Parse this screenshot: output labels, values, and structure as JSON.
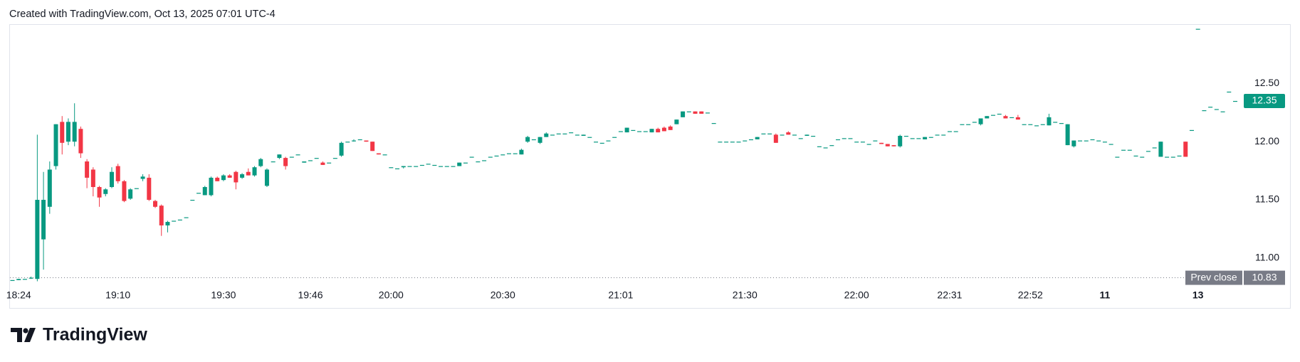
{
  "header": "Created with TradingView.com, Oct 13, 2025 07:01 UTC-4",
  "logo": "TradingView",
  "chart_data": {
    "type": "candlestick",
    "up_color": "#089981",
    "down_color": "#f23645",
    "ylim": [
      10.76,
      13.01
    ],
    "yticks": [
      {
        "value": 11,
        "label": "11.00"
      },
      {
        "value": 11.5,
        "label": "11.50"
      },
      {
        "value": 12,
        "label": "12.00"
      },
      {
        "value": 12.5,
        "label": "12.50"
      }
    ],
    "last_price": 12.35,
    "prev_close_label": "Prev close",
    "prev_close": 10.83,
    "categories": [
      null,
      "18:24",
      null,
      null,
      null,
      null,
      null,
      null,
      null,
      null,
      null,
      null,
      null,
      null,
      null,
      null,
      null,
      "19:10",
      null,
      null,
      null,
      null,
      null,
      null,
      null,
      null,
      null,
      null,
      null,
      null,
      null,
      null,
      null,
      null,
      "19:30",
      null,
      null,
      null,
      null,
      null,
      null,
      null,
      null,
      null,
      null,
      null,
      null,
      null,
      "19:46",
      null,
      null,
      null,
      null,
      null,
      null,
      null,
      null,
      null,
      null,
      null,
      null,
      "20:00",
      null,
      null,
      null,
      null,
      null,
      null,
      null,
      null,
      null,
      null,
      null,
      null,
      null,
      null,
      null,
      null,
      null,
      "20:30",
      null,
      null,
      null,
      null,
      null,
      null,
      null,
      null,
      null,
      null,
      null,
      null,
      null,
      null,
      null,
      null,
      null,
      null,
      "21:01",
      null,
      null,
      null,
      null,
      null,
      null,
      null,
      null,
      null,
      null,
      null,
      null,
      null,
      null,
      null,
      null,
      null,
      null,
      null,
      "21:30",
      null,
      null,
      null,
      null,
      null,
      null,
      null,
      null,
      null,
      null,
      null,
      null,
      null,
      null,
      null,
      null,
      null,
      "22:00",
      null,
      null,
      null,
      null,
      null,
      null,
      null,
      null,
      null,
      null,
      null,
      null,
      null,
      null,
      "22:31",
      null,
      null,
      null,
      null,
      null,
      null,
      null,
      null,
      null,
      null,
      null,
      null,
      "22:52",
      null,
      null,
      null,
      null,
      null,
      null,
      null,
      null,
      null,
      null,
      null,
      "11",
      null,
      null,
      null,
      null,
      null,
      null,
      null,
      null,
      null,
      null,
      null,
      null,
      null,
      null,
      "13",
      null,
      null,
      null,
      null,
      null,
      null
    ],
    "candles": [
      [
        10.81,
        10.81,
        10.81,
        10.81
      ],
      [
        10.81,
        10.82,
        10.81,
        10.82
      ],
      [
        10.82,
        10.82,
        10.82,
        10.82
      ],
      [
        10.83,
        10.84,
        10.82,
        10.83
      ],
      [
        10.82,
        12.06,
        10.8,
        11.5
      ],
      [
        11.16,
        11.74,
        10.9,
        11.5
      ],
      [
        11.44,
        11.83,
        11.38,
        11.76
      ],
      [
        11.79,
        12.15,
        11.76,
        12.15
      ],
      [
        12.17,
        12.22,
        11.89,
        11.99
      ],
      [
        12.0,
        12.2,
        11.97,
        12.17
      ],
      [
        12.0,
        12.33,
        11.96,
        12.17
      ],
      [
        12.11,
        12.13,
        11.86,
        11.9
      ],
      [
        11.83,
        11.85,
        11.6,
        11.69
      ],
      [
        11.76,
        11.78,
        11.53,
        11.61
      ],
      [
        11.61,
        11.62,
        11.44,
        11.52
      ],
      [
        11.55,
        11.6,
        11.53,
        11.59
      ],
      [
        11.61,
        11.78,
        11.6,
        11.74
      ],
      [
        11.79,
        11.81,
        11.64,
        11.66
      ],
      [
        11.66,
        11.67,
        11.48,
        11.49
      ],
      [
        11.51,
        11.6,
        11.5,
        11.59
      ],
      [
        11.6,
        11.6,
        11.6,
        11.6
      ],
      [
        11.68,
        11.72,
        11.66,
        11.7
      ],
      [
        11.69,
        11.72,
        11.49,
        11.5
      ],
      [
        11.49,
        11.5,
        11.43,
        11.44
      ],
      [
        11.45,
        11.46,
        11.19,
        11.28
      ],
      [
        11.28,
        11.32,
        11.22,
        11.31
      ],
      [
        11.32,
        11.32,
        11.32,
        11.32
      ],
      [
        11.33,
        11.33,
        11.33,
        11.33
      ],
      [
        11.35,
        11.35,
        11.35,
        11.35
      ],
      [
        11.5,
        11.5,
        11.5,
        11.5
      ],
      [
        11.56,
        11.56,
        11.56,
        11.56
      ],
      [
        11.54,
        11.62,
        11.54,
        11.61
      ],
      [
        11.54,
        11.7,
        11.53,
        11.69
      ],
      [
        11.69,
        11.7,
        11.66,
        11.66
      ],
      [
        11.67,
        11.72,
        11.66,
        11.71
      ],
      [
        11.71,
        11.72,
        11.69,
        11.69
      ],
      [
        11.74,
        11.75,
        11.59,
        11.65
      ],
      [
        11.69,
        11.73,
        11.68,
        11.72
      ],
      [
        11.74,
        11.77,
        11.71,
        11.71
      ],
      [
        11.71,
        11.79,
        11.7,
        11.78
      ],
      [
        11.79,
        11.86,
        11.78,
        11.85
      ],
      [
        11.62,
        11.77,
        11.61,
        11.76
      ],
      [
        11.83,
        11.83,
        11.83,
        11.83
      ],
      [
        11.86,
        11.89,
        11.85,
        11.89
      ],
      [
        11.86,
        11.87,
        11.76,
        11.79
      ],
      [
        11.87,
        11.87,
        11.87,
        11.87
      ],
      [
        11.89,
        11.89,
        11.89,
        11.89
      ],
      [
        11.82,
        11.83,
        11.82,
        11.83
      ],
      [
        11.84,
        11.84,
        11.84,
        11.84
      ],
      [
        11.86,
        11.86,
        11.86,
        11.86
      ],
      [
        11.82,
        11.83,
        11.8,
        11.8
      ],
      [
        11.82,
        11.82,
        11.82,
        11.82
      ],
      [
        11.86,
        11.86,
        11.86,
        11.86
      ],
      [
        11.88,
        12.0,
        11.87,
        11.99
      ],
      [
        12.0,
        12.0,
        12.0,
        12.0
      ],
      [
        12.01,
        12.02,
        12.0,
        12.01
      ],
      [
        12.02,
        12.02,
        12.02,
        12.02
      ],
      [
        12.01,
        12.01,
        12.0,
        12.0
      ],
      [
        12.0,
        12.0,
        11.92,
        11.92
      ],
      [
        11.9,
        11.9,
        11.89,
        11.89
      ],
      [
        11.89,
        11.89,
        11.89,
        11.89
      ],
      [
        11.78,
        11.78,
        11.78,
        11.78
      ],
      [
        11.77,
        11.77,
        11.77,
        11.77
      ],
      [
        11.78,
        11.79,
        11.77,
        11.79
      ],
      [
        11.79,
        11.79,
        11.79,
        11.79
      ],
      [
        11.79,
        11.79,
        11.79,
        11.79
      ],
      [
        11.8,
        11.8,
        11.8,
        11.8
      ],
      [
        11.81,
        11.81,
        11.81,
        11.81
      ],
      [
        11.8,
        11.8,
        11.8,
        11.8
      ],
      [
        11.79,
        11.79,
        11.79,
        11.79
      ],
      [
        11.79,
        11.79,
        11.79,
        11.79
      ],
      [
        11.79,
        11.79,
        11.79,
        11.79
      ],
      [
        11.79,
        11.82,
        11.79,
        11.82
      ],
      [
        11.82,
        11.82,
        11.82,
        11.82
      ],
      [
        11.87,
        11.87,
        11.87,
        11.87
      ],
      [
        11.83,
        11.83,
        11.83,
        11.83
      ],
      [
        11.84,
        11.84,
        11.84,
        11.84
      ],
      [
        11.87,
        11.87,
        11.87,
        11.87
      ],
      [
        11.88,
        11.88,
        11.88,
        11.88
      ],
      [
        11.89,
        11.89,
        11.89,
        11.89
      ],
      [
        11.9,
        11.9,
        11.9,
        11.9
      ],
      [
        11.9,
        11.9,
        11.9,
        11.9
      ],
      [
        11.89,
        11.94,
        11.89,
        11.93
      ],
      [
        12.0,
        12.05,
        11.99,
        12.04
      ],
      [
        12.02,
        12.02,
        12.02,
        12.02
      ],
      [
        11.99,
        12.04,
        11.98,
        12.04
      ],
      [
        12.04,
        12.08,
        12.04,
        12.07
      ],
      [
        12.06,
        12.06,
        12.06,
        12.06
      ],
      [
        12.07,
        12.07,
        12.07,
        12.07
      ],
      [
        12.07,
        12.07,
        12.07,
        12.07
      ],
      [
        12.08,
        12.08,
        12.08,
        12.08
      ],
      [
        12.06,
        12.06,
        12.06,
        12.06
      ],
      [
        12.05,
        12.06,
        12.05,
        12.06
      ],
      [
        12.04,
        12.04,
        12.04,
        12.04
      ],
      [
        12.0,
        12.0,
        12.0,
        12.0
      ],
      [
        11.99,
        11.99,
        11.99,
        11.99
      ],
      [
        12.01,
        12.01,
        12.01,
        12.01
      ],
      [
        12.04,
        12.04,
        12.04,
        12.04
      ],
      [
        12.09,
        12.09,
        12.09,
        12.09
      ],
      [
        12.08,
        12.12,
        12.08,
        12.12
      ],
      [
        12.1,
        12.1,
        12.1,
        12.1
      ],
      [
        12.09,
        12.09,
        12.09,
        12.09
      ],
      [
        12.09,
        12.09,
        12.09,
        12.09
      ],
      [
        12.08,
        12.11,
        12.08,
        12.11
      ],
      [
        12.11,
        12.12,
        12.08,
        12.08
      ],
      [
        12.12,
        12.13,
        12.09,
        12.09
      ],
      [
        12.13,
        12.14,
        12.1,
        12.1
      ],
      [
        12.15,
        12.19,
        12.15,
        12.19
      ],
      [
        12.21,
        12.26,
        12.21,
        12.26
      ],
      [
        12.26,
        12.26,
        12.26,
        12.26
      ],
      [
        12.26,
        12.26,
        12.24,
        12.24
      ],
      [
        12.26,
        12.26,
        12.24,
        12.24
      ],
      [
        12.25,
        12.25,
        12.25,
        12.25
      ],
      [
        12.16,
        12.16,
        12.16,
        12.16
      ],
      [
        12.0,
        12.0,
        12.0,
        12.0
      ],
      [
        12.0,
        12.0,
        12.0,
        12.0
      ],
      [
        12.0,
        12.0,
        12.0,
        12.0
      ],
      [
        12.0,
        12.0,
        12.0,
        12.0
      ],
      [
        12.01,
        12.01,
        12.01,
        12.01
      ],
      [
        12.02,
        12.02,
        12.02,
        12.02
      ],
      [
        12.02,
        12.04,
        12.02,
        12.04
      ],
      [
        12.07,
        12.07,
        12.07,
        12.07
      ],
      [
        12.07,
        12.07,
        12.07,
        12.07
      ],
      [
        12.06,
        12.07,
        11.99,
        11.99
      ],
      [
        12.06,
        12.06,
        12.06,
        12.06
      ],
      [
        12.08,
        12.09,
        12.06,
        12.06
      ],
      [
        12.06,
        12.06,
        12.06,
        12.06
      ],
      [
        12.03,
        12.03,
        12.03,
        12.03
      ],
      [
        12.05,
        12.06,
        12.05,
        12.06
      ],
      [
        12.05,
        12.05,
        12.05,
        12.05
      ],
      [
        11.96,
        11.96,
        11.96,
        11.96
      ],
      [
        11.95,
        11.95,
        11.95,
        11.95
      ],
      [
        11.97,
        11.97,
        11.97,
        11.97
      ],
      [
        12.02,
        12.02,
        12.02,
        12.02
      ],
      [
        12.03,
        12.03,
        12.03,
        12.03
      ],
      [
        12.03,
        12.03,
        12.03,
        12.03
      ],
      [
        12.0,
        12.0,
        12.0,
        12.0
      ],
      [
        12.0,
        12.0,
        12.0,
        12.0
      ],
      [
        11.98,
        11.98,
        11.98,
        11.98
      ],
      [
        12.01,
        12.01,
        12.01,
        12.01
      ],
      [
        11.99,
        11.99,
        11.98,
        11.98
      ],
      [
        11.98,
        11.98,
        11.96,
        11.96
      ],
      [
        11.97,
        11.97,
        11.96,
        11.96
      ],
      [
        11.96,
        12.06,
        11.95,
        12.05
      ],
      [
        12.05,
        12.05,
        12.05,
        12.05
      ],
      [
        12.03,
        12.03,
        12.03,
        12.03
      ],
      [
        12.03,
        12.03,
        12.03,
        12.03
      ],
      [
        12.02,
        12.04,
        12.02,
        12.04
      ],
      [
        12.04,
        12.04,
        12.04,
        12.04
      ],
      [
        12.06,
        12.06,
        12.06,
        12.06
      ],
      [
        12.06,
        12.06,
        12.06,
        12.06
      ],
      [
        12.09,
        12.09,
        12.09,
        12.09
      ],
      [
        12.09,
        12.09,
        12.09,
        12.09
      ],
      [
        12.15,
        12.15,
        12.15,
        12.15
      ],
      [
        12.15,
        12.15,
        12.15,
        12.15
      ],
      [
        12.17,
        12.17,
        12.17,
        12.17
      ],
      [
        12.15,
        12.2,
        12.14,
        12.2
      ],
      [
        12.2,
        12.22,
        12.2,
        12.22
      ],
      [
        12.23,
        12.23,
        12.23,
        12.23
      ],
      [
        12.24,
        12.24,
        12.24,
        12.24
      ],
      [
        12.22,
        12.23,
        12.2,
        12.2
      ],
      [
        12.21,
        12.21,
        12.21,
        12.21
      ],
      [
        12.21,
        12.23,
        12.19,
        12.19
      ],
      [
        12.15,
        12.15,
        12.15,
        12.15
      ],
      [
        12.15,
        12.15,
        12.15,
        12.15
      ],
      [
        12.14,
        12.14,
        12.14,
        12.14
      ],
      [
        12.15,
        12.15,
        12.15,
        12.15
      ],
      [
        12.14,
        12.24,
        12.14,
        12.21
      ],
      [
        12.17,
        12.17,
        12.17,
        12.17
      ],
      [
        12.16,
        12.16,
        12.16,
        12.16
      ],
      [
        11.97,
        12.15,
        11.97,
        12.15
      ],
      [
        11.96,
        12.01,
        11.95,
        12.01
      ],
      [
        12.01,
        12.01,
        12.01,
        12.01
      ],
      [
        12.01,
        12.01,
        12.01,
        12.01
      ],
      [
        12.02,
        12.02,
        12.02,
        12.02
      ],
      [
        12.01,
        12.01,
        12.01,
        12.01
      ],
      [
        12.0,
        12.0,
        12.0,
        12.0
      ],
      [
        11.98,
        11.98,
        11.98,
        11.98
      ],
      [
        11.87,
        11.87,
        11.87,
        11.87
      ],
      [
        11.93,
        11.93,
        11.93,
        11.93
      ],
      [
        11.93,
        11.93,
        11.93,
        11.93
      ],
      [
        11.88,
        11.88,
        11.88,
        11.88
      ],
      [
        11.87,
        11.87,
        11.87,
        11.87
      ],
      [
        11.92,
        11.92,
        11.92,
        11.92
      ],
      [
        11.95,
        11.95,
        11.95,
        11.95
      ],
      [
        11.87,
        12.0,
        11.87,
        12.0
      ],
      [
        11.87,
        11.87,
        11.87,
        11.87
      ],
      [
        11.87,
        11.87,
        11.87,
        11.87
      ],
      [
        11.88,
        11.88,
        11.88,
        11.88
      ],
      [
        12.0,
        12.0,
        11.87,
        11.87
      ],
      [
        12.1,
        12.1,
        12.1,
        12.1
      ],
      [
        12.97,
        12.97,
        12.97,
        12.97
      ],
      [
        12.27,
        12.27,
        12.27,
        12.27
      ],
      [
        12.3,
        12.3,
        12.3,
        12.3
      ],
      [
        12.28,
        12.28,
        12.28,
        12.28
      ],
      [
        12.26,
        12.26,
        12.26,
        12.26
      ],
      [
        12.43,
        12.43,
        12.43,
        12.43
      ],
      [
        12.35,
        12.35,
        12.35,
        12.35
      ]
    ]
  }
}
